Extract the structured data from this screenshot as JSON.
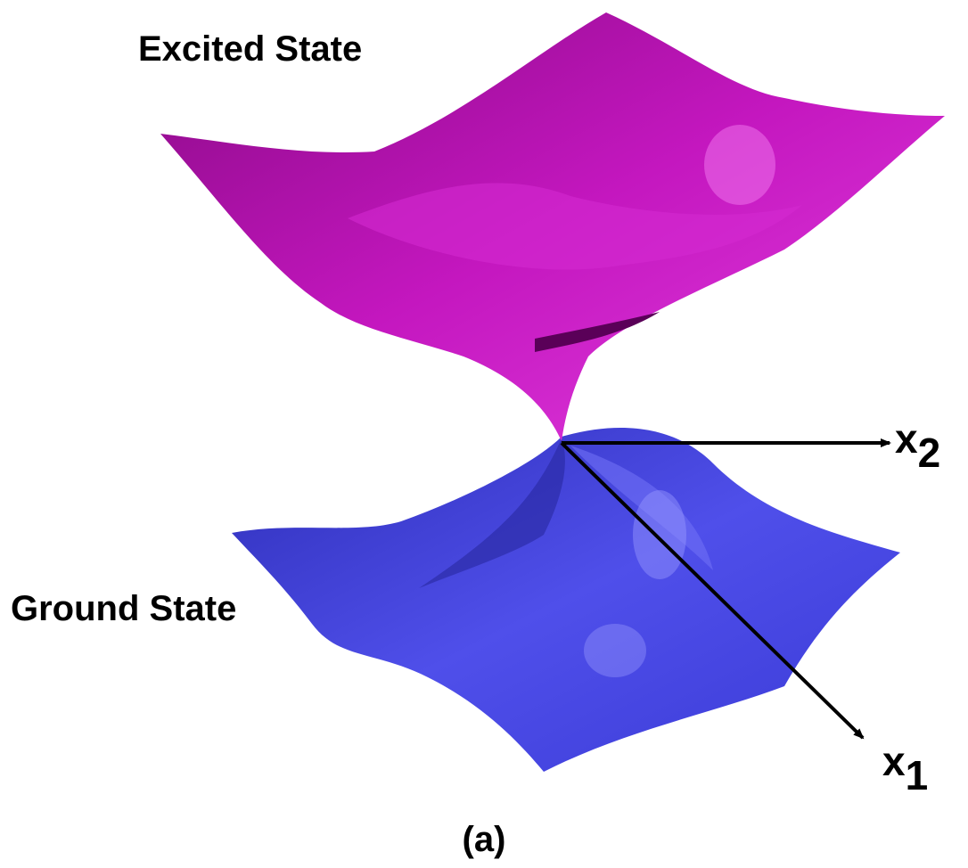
{
  "labels": {
    "excited": "Excited State",
    "ground": "Ground State",
    "axis_x2": {
      "base": "x",
      "sub": "2"
    },
    "axis_x1": {
      "base": "x",
      "sub": "1"
    },
    "caption": "(a)"
  }
}
